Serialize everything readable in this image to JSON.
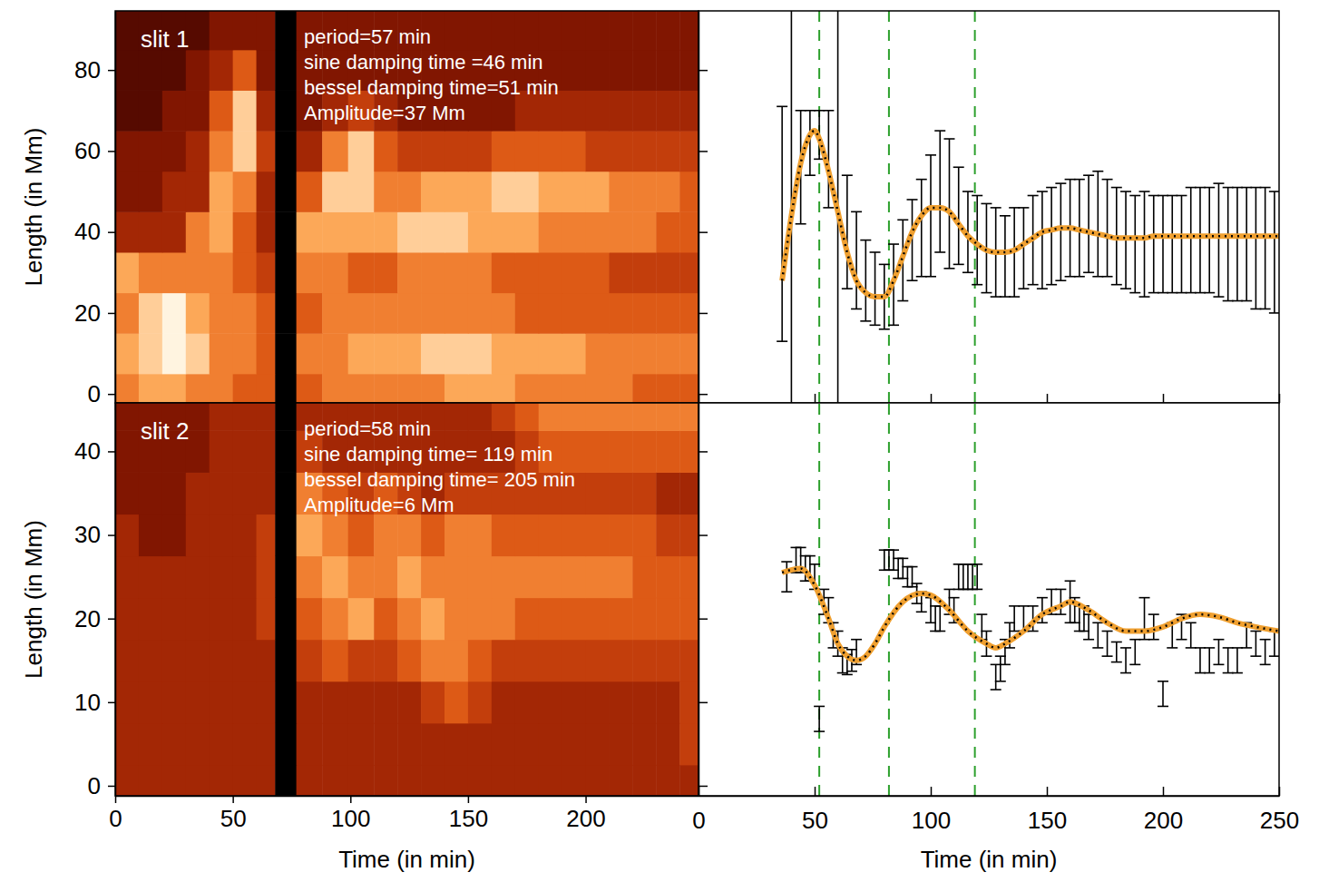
{
  "chart_data": [
    {
      "type": "heatmap",
      "title": "slit 1",
      "annotations": [
        "period=57 min",
        "sine damping time =46 min",
        "bessel damping time=51 min",
        "Amplitude=37 Mm"
      ],
      "ylabel": "Length (in Mm)",
      "xlim": [
        0,
        248
      ],
      "ylim": [
        -2.2,
        94.6
      ],
      "xticks": [
        0,
        50,
        100,
        150,
        200
      ],
      "yticks": [
        0,
        20,
        40,
        60,
        80
      ],
      "tick_labels": "y",
      "x_edges": [
        0,
        10,
        20,
        30,
        40,
        50,
        60,
        68,
        77,
        88,
        99,
        110,
        120,
        130,
        140,
        150,
        160,
        170,
        180,
        190,
        200,
        210,
        220,
        230,
        240,
        248
      ],
      "y_edges": [
        -5,
        5,
        15,
        25,
        35,
        45,
        55,
        65,
        75,
        85,
        95
      ],
      "zlim": [
        0,
        9
      ],
      "cells": [
        [
          6,
          7,
          7,
          6,
          6,
          5,
          5,
          null,
          5,
          6,
          6,
          6,
          6,
          6,
          7,
          7,
          7,
          6,
          6,
          6,
          6,
          6,
          5,
          5,
          5
        ],
        [
          7,
          8,
          9,
          8,
          6,
          6,
          5,
          null,
          6,
          6,
          7,
          7,
          7,
          8,
          8,
          8,
          7,
          7,
          7,
          7,
          6,
          6,
          6,
          6,
          6
        ],
        [
          6,
          8,
          9,
          7,
          6,
          6,
          5,
          null,
          5,
          6,
          6,
          6,
          6,
          6,
          6,
          6,
          6,
          5,
          5,
          5,
          5,
          5,
          5,
          5,
          5
        ],
        [
          7,
          6,
          6,
          6,
          6,
          5,
          4,
          null,
          6,
          6,
          5,
          5,
          6,
          6,
          6,
          6,
          5,
          5,
          5,
          5,
          5,
          4,
          4,
          4,
          4
        ],
        [
          3,
          3,
          3,
          6,
          7,
          5,
          3,
          null,
          7,
          7,
          7,
          7,
          8,
          8,
          8,
          7,
          7,
          7,
          6,
          6,
          6,
          6,
          6,
          5,
          5
        ],
        [
          2,
          2,
          3,
          3,
          7,
          6,
          3,
          null,
          5,
          8,
          8,
          6,
          6,
          7,
          7,
          7,
          8,
          8,
          7,
          7,
          7,
          6,
          6,
          6,
          5
        ],
        [
          2,
          2,
          2,
          3,
          6,
          8,
          4,
          null,
          3,
          6,
          8,
          5,
          4,
          4,
          4,
          4,
          5,
          5,
          5,
          5,
          4,
          4,
          4,
          4,
          4
        ],
        [
          1,
          1,
          2,
          2,
          5,
          8,
          3,
          null,
          2,
          3,
          4,
          3,
          2,
          2,
          2,
          2,
          2,
          3,
          3,
          3,
          3,
          3,
          3,
          3,
          3
        ],
        [
          1,
          1,
          1,
          2,
          3,
          5,
          2,
          null,
          2,
          2,
          2,
          2,
          2,
          2,
          2,
          2,
          2,
          2,
          2,
          2,
          2,
          2,
          2,
          2,
          2
        ],
        [
          1,
          1,
          1,
          1,
          2,
          2,
          2,
          null,
          2,
          2,
          2,
          2,
          2,
          2,
          2,
          2,
          2,
          2,
          2,
          2,
          2,
          2,
          2,
          2,
          2
        ]
      ]
    },
    {
      "type": "scatter",
      "marker": "none",
      "xlim": [
        0,
        250
      ],
      "ylim": [
        -2.2,
        94.6
      ],
      "xticks": [
        0,
        50,
        100,
        150,
        200,
        250
      ],
      "yticks": [
        0,
        20,
        40,
        60,
        80
      ],
      "tick_labels": false,
      "x": [
        36,
        40,
        44,
        48,
        52,
        56,
        60,
        64,
        68,
        72,
        76,
        80,
        84,
        88,
        92,
        96,
        100,
        104,
        108,
        112,
        116,
        120,
        124,
        128,
        132,
        136,
        140,
        144,
        148,
        152,
        156,
        160,
        164,
        168,
        172,
        176,
        180,
        184,
        188,
        192,
        196,
        200,
        204,
        208,
        212,
        216,
        220,
        224,
        228,
        232,
        236,
        240,
        244,
        248
      ],
      "values": [
        42,
        48,
        56,
        62,
        64,
        58,
        50,
        40,
        33,
        28,
        26,
        24,
        27,
        33,
        38,
        41,
        44,
        50,
        47,
        44,
        40,
        38,
        36,
        35,
        34,
        35,
        36,
        38,
        38,
        39,
        40,
        41,
        41,
        42,
        42,
        41,
        39,
        38,
        37,
        37,
        37,
        37,
        37,
        37,
        38,
        38,
        38,
        38,
        37,
        37,
        37,
        36,
        36,
        35
      ],
      "errors": [
        29,
        60,
        14,
        8,
        6,
        12,
        60,
        14,
        12,
        10,
        9,
        8,
        10,
        10,
        10,
        12,
        15,
        15,
        16,
        12,
        10,
        11,
        11,
        11,
        10,
        11,
        10,
        11,
        12,
        12,
        12,
        12,
        12,
        12,
        13,
        12,
        12,
        12,
        12,
        13,
        12,
        12,
        12,
        12,
        13,
        13,
        13,
        14,
        14,
        14,
        14,
        15,
        15,
        15
      ],
      "fit": {
        "color": "#f0a030",
        "line_style": "dotted",
        "x": [
          36,
          40,
          44,
          48,
          50,
          52,
          56,
          60,
          64,
          68,
          72,
          76,
          80,
          84,
          88,
          92,
          96,
          100,
          104,
          108,
          112,
          116,
          120,
          124,
          128,
          132,
          136,
          140,
          144,
          148,
          152,
          156,
          160,
          164,
          168,
          172,
          176,
          180,
          184,
          188,
          192,
          196,
          200,
          210,
          220,
          230,
          240,
          250
        ],
        "values": [
          28,
          44,
          57,
          64,
          65,
          63,
          55,
          45,
          35,
          28,
          25,
          24,
          24,
          28,
          34,
          40,
          44,
          46,
          46,
          45,
          42,
          39,
          37,
          35.5,
          35,
          35,
          35.5,
          37,
          38.5,
          40,
          40.5,
          41,
          41,
          40.5,
          40,
          39.5,
          39,
          38.5,
          38.5,
          38.5,
          38.5,
          39,
          39,
          39,
          39,
          39,
          39,
          39
        ]
      },
      "vlines": {
        "values": [
          52,
          82,
          119
        ],
        "color": "#2ca02c",
        "line_style": "dashed"
      }
    },
    {
      "type": "heatmap",
      "title": "slit 2",
      "annotations": [
        "period=58 min",
        "sine damping time= 119 min",
        "bessel damping time= 205 min",
        "Amplitude=6 Mm"
      ],
      "xlabel": "Time (in min)",
      "ylabel": "Length (in Mm)",
      "xlim": [
        0,
        248
      ],
      "ylim": [
        -1.2,
        45.8
      ],
      "xticks": [
        0,
        50,
        100,
        150,
        200
      ],
      "yticks": [
        0,
        10,
        20,
        30,
        40
      ],
      "tick_labels": true,
      "x_edges": [
        0,
        10,
        20,
        30,
        40,
        50,
        60,
        68,
        77,
        88,
        99,
        110,
        120,
        130,
        140,
        150,
        160,
        170,
        180,
        190,
        200,
        210,
        220,
        230,
        240,
        248
      ],
      "y_edges": [
        -2.5,
        2.5,
        7.5,
        12.5,
        17.5,
        22.5,
        27.5,
        32.5,
        37.5,
        42.5,
        47.5
      ],
      "zlim": [
        0,
        9
      ],
      "cells": [
        [
          3,
          3,
          3,
          3,
          3,
          3,
          3,
          null,
          3,
          3,
          3,
          3,
          3,
          3,
          3,
          3,
          3,
          3,
          3,
          3,
          3,
          3,
          3,
          3,
          3
        ],
        [
          3,
          3,
          3,
          3,
          3,
          3,
          3,
          null,
          3,
          3,
          3,
          3,
          3,
          3,
          3,
          3,
          3,
          3,
          3,
          3,
          3,
          3,
          3,
          3,
          4
        ],
        [
          3,
          3,
          3,
          3,
          3,
          3,
          3,
          null,
          3,
          3,
          3,
          3,
          3,
          4,
          5,
          4,
          3,
          3,
          3,
          3,
          3,
          3,
          3,
          3,
          4
        ],
        [
          3,
          3,
          3,
          3,
          3,
          3,
          3,
          null,
          4,
          5,
          4,
          4,
          5,
          6,
          6,
          5,
          4,
          4,
          4,
          4,
          4,
          4,
          4,
          4,
          4
        ],
        [
          3,
          3,
          3,
          3,
          3,
          3,
          4,
          null,
          5,
          6,
          7,
          5,
          6,
          7,
          6,
          6,
          6,
          5,
          5,
          5,
          5,
          5,
          5,
          5,
          5
        ],
        [
          3,
          3,
          3,
          3,
          3,
          3,
          4,
          null,
          6,
          7,
          6,
          6,
          7,
          6,
          6,
          6,
          6,
          6,
          6,
          6,
          6,
          6,
          5,
          5,
          5
        ],
        [
          3,
          2,
          2,
          3,
          3,
          3,
          4,
          null,
          7,
          6,
          5,
          6,
          6,
          5,
          6,
          6,
          5,
          5,
          5,
          5,
          5,
          5,
          5,
          4,
          4
        ],
        [
          2,
          2,
          2,
          3,
          3,
          3,
          3,
          null,
          6,
          5,
          4,
          5,
          4,
          3,
          4,
          4,
          4,
          4,
          4,
          4,
          4,
          4,
          4,
          3,
          3
        ],
        [
          2,
          2,
          2,
          2,
          3,
          3,
          3,
          null,
          4,
          3,
          3,
          3,
          3,
          3,
          3,
          3,
          3,
          4,
          5,
          5,
          5,
          5,
          5,
          5,
          5
        ],
        [
          2,
          2,
          2,
          2,
          3,
          3,
          3,
          null,
          3,
          3,
          3,
          3,
          3,
          3,
          3,
          3,
          4,
          5,
          6,
          6,
          6,
          6,
          6,
          6,
          6
        ]
      ]
    },
    {
      "type": "scatter",
      "marker": "none",
      "xlabel": "Time (in min)",
      "xlim": [
        0,
        250
      ],
      "ylim": [
        -1.2,
        45.8
      ],
      "xticks": [
        0,
        50,
        100,
        150,
        200,
        250
      ],
      "yticks": [
        0,
        10,
        20,
        30,
        40
      ],
      "tick_labels": "x",
      "x": [
        38,
        42,
        44,
        46,
        48,
        50,
        52,
        54,
        56,
        58,
        60,
        62,
        64,
        66,
        68,
        80,
        82,
        84,
        86,
        88,
        90,
        92,
        94,
        96,
        100,
        102,
        104,
        108,
        110,
        112,
        114,
        116,
        118,
        120,
        122,
        124,
        128,
        130,
        132,
        134,
        136,
        140,
        144,
        148,
        152,
        156,
        160,
        162,
        164,
        166,
        168,
        172,
        176,
        180,
        184,
        188,
        192,
        196,
        200,
        204,
        208,
        212,
        216,
        220,
        224,
        228,
        232,
        236,
        240,
        244,
        248
      ],
      "values": [
        25,
        27,
        27,
        26,
        26,
        25,
        8,
        22,
        21,
        18,
        17,
        15,
        14.5,
        15,
        16,
        27,
        27,
        27,
        26,
        26,
        25,
        25,
        23,
        22,
        21,
        20,
        20,
        22,
        21,
        25,
        25,
        25,
        25,
        25,
        19,
        17,
        13,
        14,
        16,
        18,
        20,
        20,
        20,
        21,
        22,
        22,
        22,
        21,
        20,
        20,
        19,
        18,
        17,
        16,
        15,
        16,
        20,
        19,
        11,
        18,
        19,
        18,
        15,
        15,
        16,
        15,
        15,
        18,
        17,
        16,
        17
      ],
      "errors": [
        1.8,
        1.5,
        1.5,
        1.5,
        1.5,
        1.5,
        1.5,
        1.5,
        1.5,
        1.5,
        1.5,
        1.5,
        1.2,
        1.3,
        1.5,
        1.2,
        1.2,
        1.2,
        1.2,
        1.2,
        1.2,
        1.2,
        1.2,
        1.2,
        1.5,
        1.5,
        1.5,
        1.5,
        1.5,
        1.5,
        1.5,
        1.5,
        1.5,
        1.5,
        1.5,
        1.5,
        1.5,
        1.5,
        1.5,
        1.5,
        1.5,
        1.5,
        1.5,
        1.5,
        1.5,
        1.5,
        2.5,
        1.5,
        1.5,
        1.5,
        1.5,
        1.5,
        1.5,
        1.2,
        1.5,
        1.5,
        2.5,
        1.5,
        1.5,
        1.5,
        1.5,
        1.5,
        1.5,
        1.5,
        1.5,
        1.5,
        1.5,
        1.5,
        1.5,
        1.5,
        1.5
      ],
      "fit": {
        "color": "#f0a030",
        "line_style": "dotted",
        "x": [
          36,
          44,
          50,
          56,
          60,
          64,
          68,
          72,
          76,
          80,
          88,
          96,
          100,
          108,
          116,
          124,
          128,
          132,
          140,
          148,
          156,
          160,
          168,
          176,
          184,
          192,
          200,
          208,
          216,
          224,
          232,
          240,
          250
        ],
        "values": [
          25.5,
          26,
          24,
          20,
          17,
          15.5,
          15,
          15.5,
          17,
          19,
          22,
          23,
          22.8,
          21,
          18.5,
          17,
          16.5,
          17,
          18.5,
          20.5,
          21.5,
          22,
          21,
          19.5,
          18.5,
          18.5,
          19,
          20,
          20.5,
          20.2,
          19.5,
          19,
          18.5
        ]
      },
      "vlines": {
        "values": [
          52,
          82,
          119
        ],
        "color": "#2ca02c",
        "line_style": "dashed"
      }
    }
  ]
}
